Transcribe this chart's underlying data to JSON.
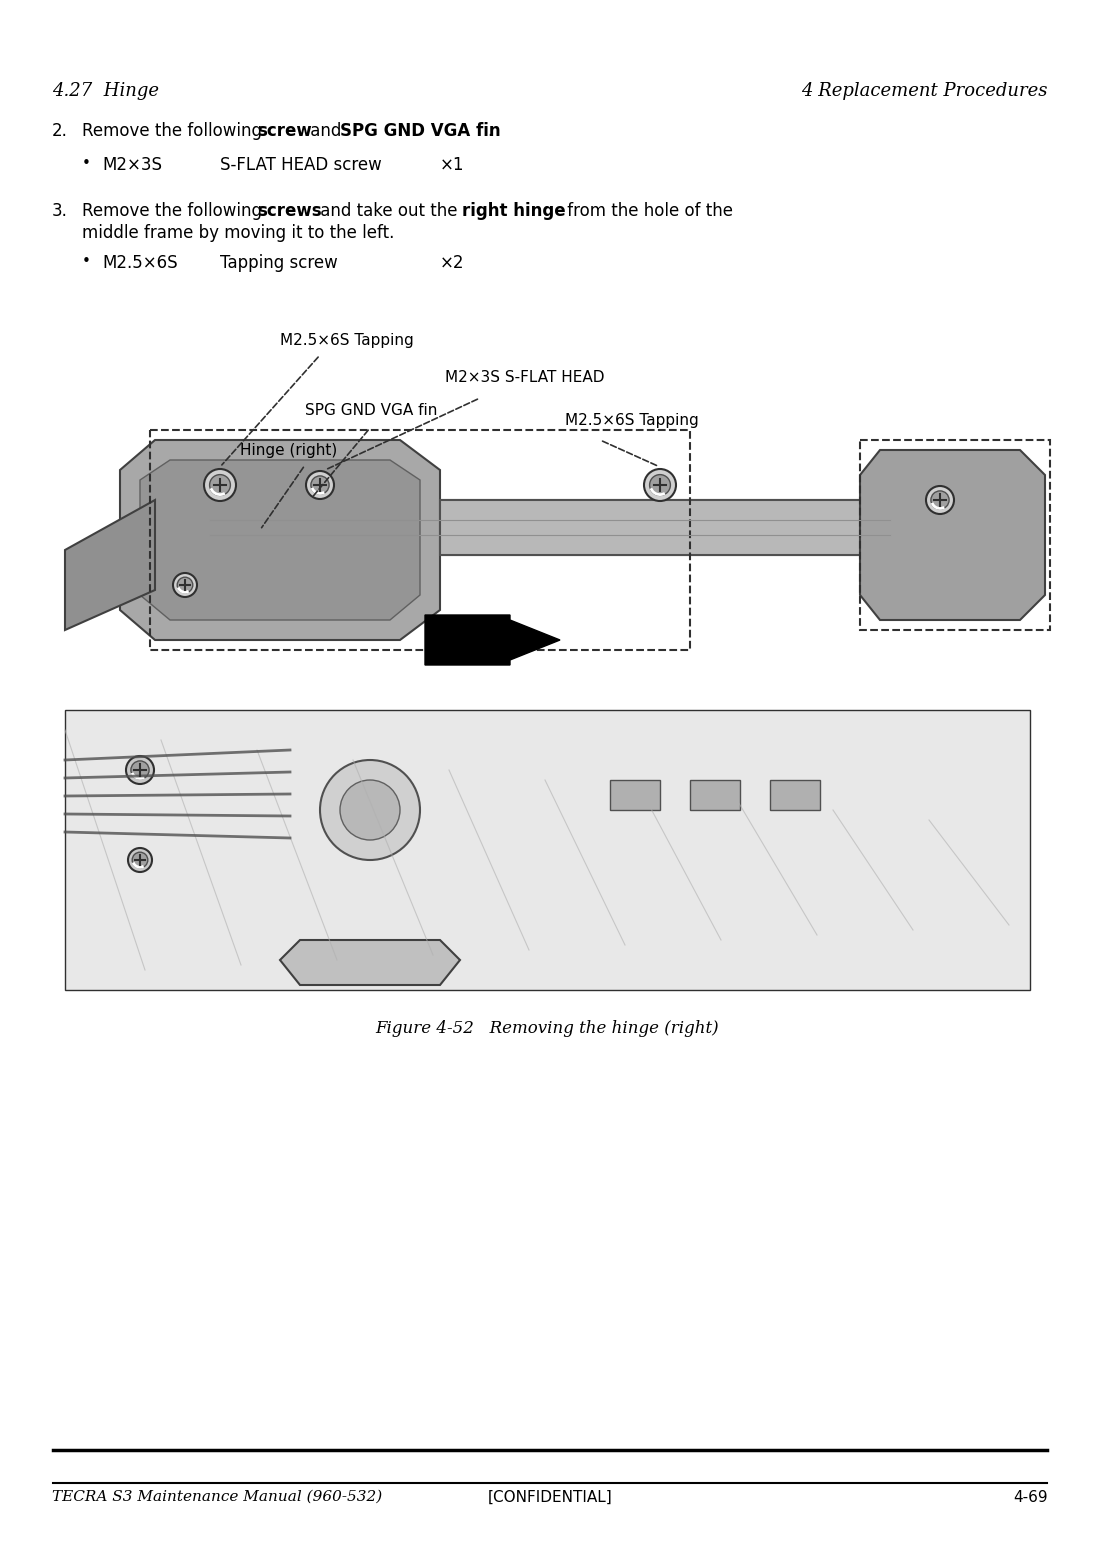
{
  "page_header_left": "4.27  Hinge",
  "page_header_right": "4 Replacement Procedures",
  "page_footer_left": "TECRA S3 Maintenance Manual (960-532)",
  "page_footer_center": "[CONFIDENTIAL]",
  "page_footer_right": "4-69",
  "background_color": "#ffffff",
  "text_color": "#000000",
  "step2_text_before_bold": "Remove the following ",
  "step2_bold1": "screw",
  "step2_text_between": " and ",
  "step2_bold2": "SPG GND VGA fin",
  "step2_text_after": ".",
  "step2_bullet": "M2×3S   S-FLAT HEAD screw   ×1",
  "step3_text_before_bold": "Remove the following ",
  "step3_bold1": "screws",
  "step3_text_between": " and take out the ",
  "step3_bold2": "right hinge",
  "step3_text_after": " from the hole of the\nmiddle frame by moving it to the left.",
  "step3_bullet": "M2.5×6S   Tapping screw    ×2",
  "figure_caption": "Figure 4-52   Removing the hinge (right)",
  "annotation_m25_top": "M2.5×6S Tapping",
  "annotation_m2_head": "M2×3S S-FLAT HEAD",
  "annotation_spg": "SPG GND VGA fin",
  "annotation_hinge": "Hinge (right)",
  "annotation_m25_right": "M2.5×6S Tapping"
}
